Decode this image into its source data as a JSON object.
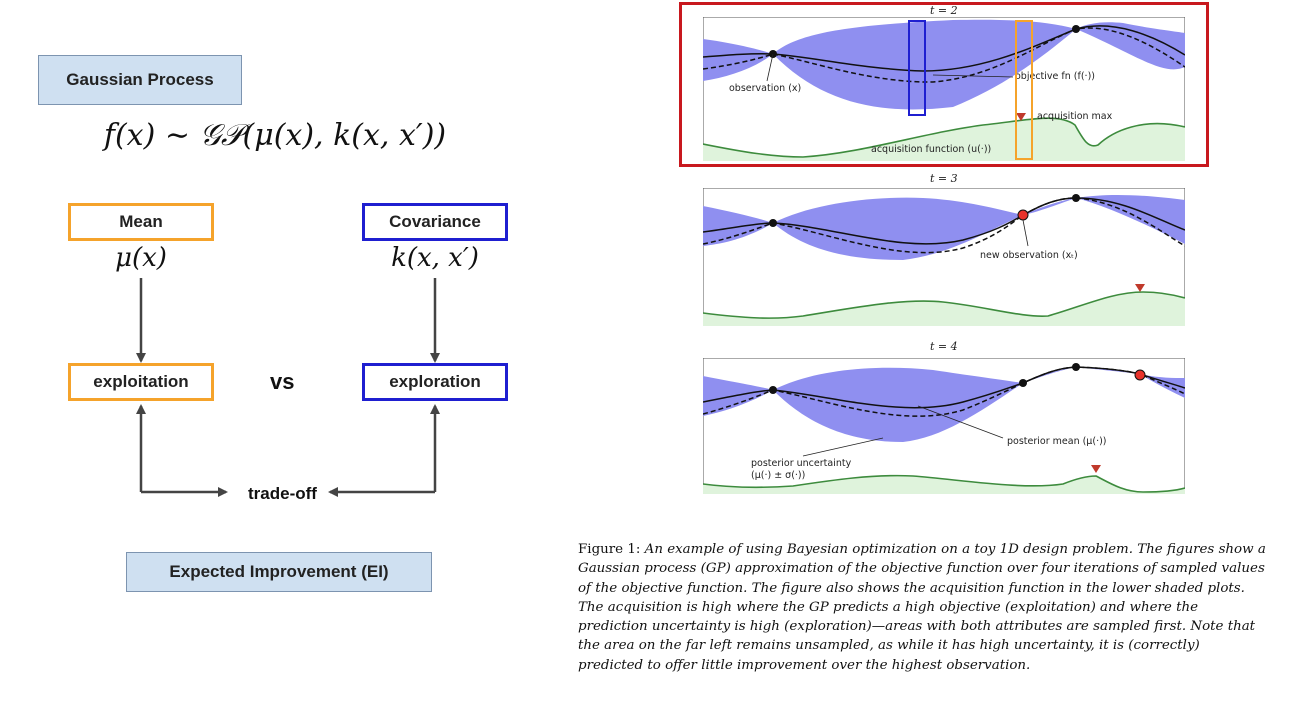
{
  "left": {
    "gp_label": "Gaussian Process",
    "gp_formula": "f(x) ∼ 𝒢𝒫(μ(x), k(x, x′))",
    "mean_label": "Mean",
    "mean_formula": "μ(x)",
    "cov_label": "Covariance",
    "cov_formula": "k(x, x′)",
    "exploitation_label": "exploitation",
    "exploration_label": "exploration",
    "vs_label": "vs",
    "tradeoff_label": "trade-off",
    "ei_label": "Expected Improvement (EI)"
  },
  "figure": {
    "panels": [
      {
        "title": "t = 2",
        "annotations": [
          "observation (x)",
          "objective fn (f(·))",
          "acquisition max",
          "acquisition function (u(·))"
        ]
      },
      {
        "title": "t = 3",
        "annotations": [
          "new observation (xₜ)"
        ]
      },
      {
        "title": "t = 4",
        "annotations": [
          "posterior mean (μ(·))",
          "posterior uncertainty",
          "(μ(·) ± σ(·))"
        ]
      }
    ],
    "caption_prefix": "Figure 1:",
    "caption_text": "An example of using Bayesian optimization on a toy 1D design problem. The figures show a Gaussian process (GP) approximation of the objective function over four iterations of sampled values of the objective function. The figure also shows the acquisition function in the lower shaded plots. The acquisition is high where the GP predicts a high objective (exploitation) and where the prediction uncertainty is high (exploration)—areas with both attributes are sampled first. Note that the area on the far left remains unsampled, as while it has high uncertainty, it is (correctly) predicted to offer little improvement over the highest observation."
  },
  "colors": {
    "uncertainty_band": "#8f8ff0",
    "acquisition_fill": "#dff3dc",
    "acquisition_line": "#3d8b3d",
    "highlight_red": "#c8181e",
    "highlight_orange": "#f5a32b",
    "highlight_blue": "#1f1fd0",
    "new_point": "#e8322b"
  }
}
